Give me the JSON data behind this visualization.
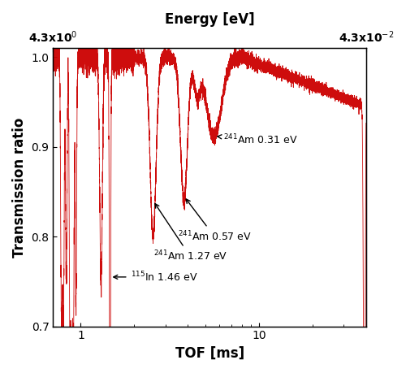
{
  "title_bottom": "TOF [ms]",
  "title_top": "Energy [eV]",
  "ylabel": "Transmission ratio",
  "xlim": [
    0.7,
    40
  ],
  "ylim": [
    0.7,
    1.01
  ],
  "yticks": [
    0.7,
    0.8,
    0.9,
    1.0
  ],
  "color": "#cc0000",
  "top_tick_labels": [
    "4.3x10$^0$",
    "4.3x10$^{-2}$"
  ],
  "background_color": "#ffffff"
}
